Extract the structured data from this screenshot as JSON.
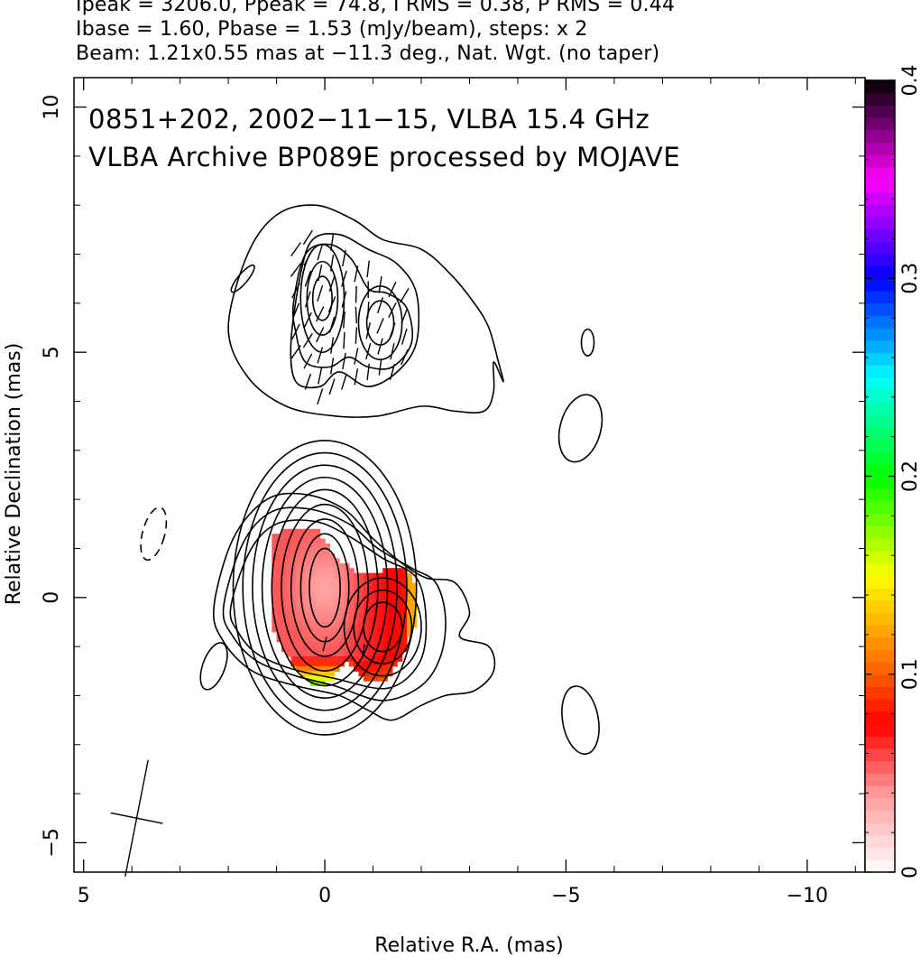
{
  "header": {
    "line1": "Ipeak = 3206.0, Ppeak = 74.8, I RMS = 0.38, P RMS = 0.44",
    "line2": "Ibase = 1.60, Pbase = 1.53 (mJy/beam), steps: x 2",
    "line3": "Beam: 1.21x0.55 mas at −11.3 deg., Nat. Wgt. (no taper)"
  },
  "chart_data": {
    "type": "heatmap",
    "annotation_line1": "0851+202, 2002−11−15, VLBA 15.4 GHz",
    "annotation_line2": "VLBA Archive BP089E processed by MOJAVE",
    "xlabel": "Relative R.A. (mas)",
    "ylabel": "Relative Declination (mas)",
    "xlim": [
      5.2,
      -11.2
    ],
    "ylim": [
      -5.6,
      10.6
    ],
    "x_ticks": [
      {
        "value": 5,
        "label": "5"
      },
      {
        "value": 0,
        "label": "0"
      },
      {
        "value": -5,
        "label": "−5"
      },
      {
        "value": -10,
        "label": "−10"
      }
    ],
    "y_ticks": [
      {
        "value": 10,
        "label": "10"
      },
      {
        "value": 5,
        "label": "5"
      },
      {
        "value": 0,
        "label": "0"
      },
      {
        "value": -5,
        "label": "−5"
      }
    ],
    "colorbar": {
      "range": [
        0,
        0.4
      ],
      "ticks": [
        {
          "value": 0,
          "label": "0"
        },
        {
          "value": 0.1,
          "label": "0.1"
        },
        {
          "value": 0.2,
          "label": "0.2"
        },
        {
          "value": 0.3,
          "label": "0.3"
        },
        {
          "value": 0.4,
          "label": "0.4"
        }
      ],
      "stops": [
        {
          "v": 0.0,
          "color": "#ffffff"
        },
        {
          "v": 0.04,
          "color": "#ff9a9a"
        },
        {
          "v": 0.075,
          "color": "#ff0000"
        },
        {
          "v": 0.11,
          "color": "#ff7f00"
        },
        {
          "v": 0.15,
          "color": "#ffff00"
        },
        {
          "v": 0.2,
          "color": "#00ff00"
        },
        {
          "v": 0.25,
          "color": "#00ffff"
        },
        {
          "v": 0.3,
          "color": "#0000ff"
        },
        {
          "v": 0.35,
          "color": "#ff00ff"
        },
        {
          "v": 0.4,
          "color": "#000000"
        }
      ]
    },
    "beam": {
      "major": 1.21,
      "minor": 0.55,
      "pa_deg": -11.3,
      "center": [
        3.9,
        -4.5
      ]
    },
    "lower_core": {
      "center": [
        0.0,
        0.2
      ],
      "contours": [
        [
          1.9,
          3.0
        ],
        [
          1.7,
          2.75
        ],
        [
          1.5,
          2.5
        ],
        [
          1.3,
          2.25
        ],
        [
          1.1,
          2.0
        ],
        [
          0.9,
          1.7
        ],
        [
          0.7,
          1.4
        ],
        [
          0.5,
          1.1
        ],
        [
          0.32,
          0.8
        ]
      ]
    },
    "lower_knot": {
      "center": [
        -1.2,
        -0.6
      ],
      "contours": [
        [
          0.8,
          1.0
        ],
        [
          0.6,
          0.75
        ],
        [
          0.4,
          0.5
        ]
      ]
    },
    "lower_outer": [
      [
        [
          2.3,
          -0.2
        ],
        [
          1.9,
          1.2
        ],
        [
          1.2,
          2.0
        ],
        [
          0.4,
          2.1
        ],
        [
          -0.4,
          1.8
        ],
        [
          -1.0,
          1.2
        ],
        [
          -1.6,
          0.7
        ],
        [
          -2.1,
          0.4
        ],
        [
          -2.7,
          0.3
        ],
        [
          -3.0,
          -0.3
        ],
        [
          -2.8,
          -0.8
        ],
        [
          -3.4,
          -1.0
        ],
        [
          -3.5,
          -1.5
        ],
        [
          -3.1,
          -1.9
        ],
        [
          -2.5,
          -2.0
        ],
        [
          -2.0,
          -2.2
        ],
        [
          -1.4,
          -2.5
        ],
        [
          -0.9,
          -2.3
        ],
        [
          -0.3,
          -2.0
        ],
        [
          0.6,
          -1.8
        ],
        [
          1.5,
          -1.5
        ],
        [
          2.1,
          -0.9
        ]
      ],
      [
        [
          2.1,
          -0.2
        ],
        [
          1.7,
          1.1
        ],
        [
          1.1,
          1.75
        ],
        [
          0.3,
          1.8
        ],
        [
          -0.5,
          1.5
        ],
        [
          -1.1,
          1.0
        ],
        [
          -1.8,
          0.6
        ],
        [
          -2.3,
          0.3
        ],
        [
          -2.5,
          -0.4
        ],
        [
          -2.4,
          -1.2
        ],
        [
          -2.0,
          -1.8
        ],
        [
          -1.2,
          -2.1
        ],
        [
          -0.2,
          -1.8
        ],
        [
          0.6,
          -1.6
        ],
        [
          1.4,
          -1.3
        ],
        [
          1.9,
          -0.8
        ]
      ],
      [
        [
          1.95,
          -0.2
        ],
        [
          1.55,
          0.95
        ],
        [
          1.0,
          1.5
        ],
        [
          0.2,
          1.55
        ],
        [
          -0.5,
          1.25
        ],
        [
          -1.2,
          0.8
        ],
        [
          -1.9,
          0.4
        ],
        [
          -2.1,
          -0.5
        ],
        [
          -1.95,
          -1.35
        ],
        [
          -1.3,
          -1.85
        ],
        [
          -0.2,
          -1.65
        ],
        [
          0.7,
          -1.45
        ],
        [
          1.4,
          -1.15
        ],
        [
          1.8,
          -0.7
        ]
      ]
    ],
    "upper_outer": [
      [
        [
          2.0,
          5.5
        ],
        [
          1.6,
          7.0
        ],
        [
          1.0,
          7.8
        ],
        [
          0.2,
          8.0
        ],
        [
          -0.6,
          7.7
        ],
        [
          -1.2,
          7.3
        ],
        [
          -2.0,
          7.1
        ],
        [
          -2.6,
          6.6
        ],
        [
          -3.1,
          6.0
        ],
        [
          -3.4,
          5.5
        ],
        [
          -3.6,
          4.8
        ],
        [
          -3.7,
          4.4
        ],
        [
          -3.5,
          4.8
        ],
        [
          -3.5,
          4.2
        ],
        [
          -3.3,
          3.8
        ],
        [
          -2.7,
          3.8
        ],
        [
          -2.0,
          3.9
        ],
        [
          -1.1,
          3.7
        ],
        [
          -0.2,
          3.7
        ],
        [
          0.8,
          3.9
        ],
        [
          1.6,
          4.5
        ]
      ],
      [
        [
          0.5,
          6.6
        ],
        [
          0.25,
          7.3
        ],
        [
          -0.3,
          7.4
        ],
        [
          -0.9,
          7.1
        ],
        [
          -1.5,
          6.8
        ],
        [
          -1.9,
          6.2
        ],
        [
          -1.9,
          5.2
        ],
        [
          -1.5,
          4.6
        ],
        [
          -0.9,
          4.3
        ],
        [
          -0.3,
          4.6
        ],
        [
          0.1,
          4.3
        ],
        [
          0.6,
          4.4
        ],
        [
          0.7,
          5.2
        ]
      ],
      [
        [
          0.65,
          6.0
        ],
        [
          0.4,
          7.0
        ],
        [
          -0.1,
          7.2
        ],
        [
          -0.55,
          6.9
        ],
        [
          -0.9,
          6.3
        ],
        [
          -1.3,
          6.2
        ],
        [
          -1.7,
          5.9
        ],
        [
          -1.8,
          5.2
        ],
        [
          -1.4,
          4.7
        ],
        [
          -0.9,
          4.7
        ],
        [
          -0.5,
          4.9
        ],
        [
          -0.1,
          4.7
        ],
        [
          0.4,
          4.8
        ],
        [
          0.6,
          5.4
        ]
      ]
    ],
    "upper_core": {
      "center": [
        0.05,
        6.1
      ],
      "contours": [
        [
          0.45,
          1.1
        ],
        [
          0.32,
          0.75
        ],
        [
          0.2,
          0.45
        ]
      ]
    },
    "upper_knot": {
      "center": [
        -1.15,
        5.6
      ],
      "contours": [
        [
          0.45,
          0.75
        ],
        [
          0.28,
          0.45
        ]
      ]
    },
    "islands": [
      {
        "center": [
          1.7,
          6.5
        ],
        "rx": 0.1,
        "ry": 0.35,
        "rot": 40,
        "dashed": false
      },
      {
        "center": [
          -5.45,
          5.2
        ],
        "rx": 0.13,
        "ry": 0.27,
        "rot": 0,
        "dashed": false
      },
      {
        "center": [
          -5.3,
          3.45
        ],
        "rx": 0.42,
        "ry": 0.7,
        "rot": 15,
        "dashed": false
      },
      {
        "center": [
          3.55,
          1.3
        ],
        "rx": 0.23,
        "ry": 0.55,
        "rot": 15,
        "dashed": true
      },
      {
        "center": [
          2.3,
          -1.4
        ],
        "rx": 0.23,
        "ry": 0.5,
        "rot": 20,
        "dashed": false
      },
      {
        "center": [
          -5.3,
          -2.5
        ],
        "rx": 0.37,
        "ry": 0.7,
        "rot": -10,
        "dashed": false
      }
    ],
    "ticks_lower": [
      {
        "x": 0.0,
        "y": -0.95,
        "pa": -15
      },
      {
        "x": -0.8,
        "y": -1.1,
        "pa": -10
      }
    ],
    "evpa_columns": [
      {
        "x": 0.6,
        "y0": 5.0,
        "y1": 7.2,
        "pa": -30
      },
      {
        "x": 0.35,
        "y0": 4.4,
        "y1": 7.5,
        "pa": -25
      },
      {
        "x": 0.1,
        "y0": 4.1,
        "y1": 7.4,
        "pa": -20
      },
      {
        "x": -0.15,
        "y0": 4.3,
        "y1": 7.5,
        "pa": -15
      },
      {
        "x": -0.4,
        "y0": 4.4,
        "y1": 7.2,
        "pa": -10
      },
      {
        "x": -0.65,
        "y0": 4.5,
        "y1": 6.9,
        "pa": -5
      },
      {
        "x": -0.9,
        "y0": 4.6,
        "y1": 6.7,
        "pa": -8
      },
      {
        "x": -1.15,
        "y0": 4.7,
        "y1": 6.6,
        "pa": -15
      },
      {
        "x": -1.4,
        "y0": 4.6,
        "y1": 6.5,
        "pa": -20
      },
      {
        "x": -1.65,
        "y0": 4.9,
        "y1": 6.2,
        "pa": -25
      }
    ],
    "pol_region": {
      "cells": "generated",
      "outline": [
        [
          1.05,
          1.3
        ],
        [
          0.6,
          1.45
        ],
        [
          0.15,
          1.35
        ],
        [
          -0.25,
          0.8
        ],
        [
          -0.65,
          0.5
        ],
        [
          -1.2,
          0.55
        ],
        [
          -1.7,
          0.55
        ],
        [
          -1.95,
          0.2
        ],
        [
          -1.85,
          -0.6
        ],
        [
          -1.6,
          -1.2
        ],
        [
          -1.3,
          -1.65
        ],
        [
          -0.8,
          -1.7
        ],
        [
          -0.4,
          -1.3
        ],
        [
          -0.15,
          -1.7
        ],
        [
          0.15,
          -1.85
        ],
        [
          0.6,
          -1.5
        ],
        [
          1.05,
          -0.7
        ],
        [
          1.15,
          0.3
        ]
      ]
    }
  }
}
